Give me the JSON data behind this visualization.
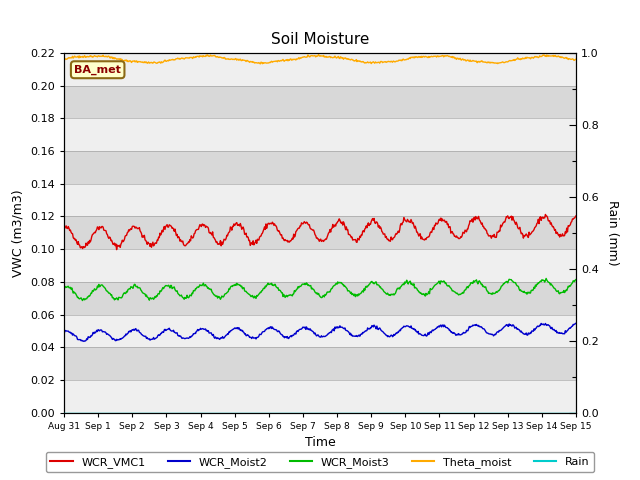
{
  "title": "Soil Moisture",
  "xlabel": "Time",
  "ylabel_left": "VWC (m3/m3)",
  "ylabel_right": "Rain (mm)",
  "ylim_left": [
    0.0,
    0.22
  ],
  "ylim_right": [
    0.0,
    1.0
  ],
  "yticks_left": [
    0.0,
    0.02,
    0.04,
    0.06,
    0.08,
    0.1,
    0.12,
    0.14,
    0.16,
    0.18,
    0.2,
    0.22
  ],
  "yticks_right_major": [
    0.0,
    0.2,
    0.4,
    0.6,
    0.8,
    1.0
  ],
  "yticks_right_minor": [
    0.1,
    0.3,
    0.5,
    0.7,
    0.9
  ],
  "xtick_labels": [
    "Aug 31",
    "Sep 1",
    "Sep 2",
    "Sep 3",
    "Sep 4",
    "Sep 5",
    "Sep 6",
    "Sep 7",
    "Sep 8",
    "Sep 9",
    "Sep 10",
    "Sep 11",
    "Sep 12",
    "Sep 13",
    "Sep 14",
    "Sep 15"
  ],
  "annotation": "BA_met",
  "fig_bg": "#ffffff",
  "plot_bg": "#d8d8d8",
  "band_color": "#ebebeb",
  "line_colors": {
    "WCR_VMC1": "#dd0000",
    "WCR_Moist2": "#0000cc",
    "WCR_Moist3": "#00bb00",
    "Theta_moist": "#ffaa00",
    "Rain": "#00cccc"
  },
  "legend_labels": [
    "WCR_VMC1",
    "WCR_Moist2",
    "WCR_Moist3",
    "Theta_moist",
    "Rain"
  ],
  "wcr_vmc1_base": 0.107,
  "wcr_vmc1_amp": 0.006,
  "wcr_moist2_base": 0.047,
  "wcr_moist2_amp": 0.003,
  "wcr_moist3_base": 0.073,
  "wcr_moist3_amp": 0.004,
  "theta_base": 0.216,
  "theta_amp": 0.002
}
